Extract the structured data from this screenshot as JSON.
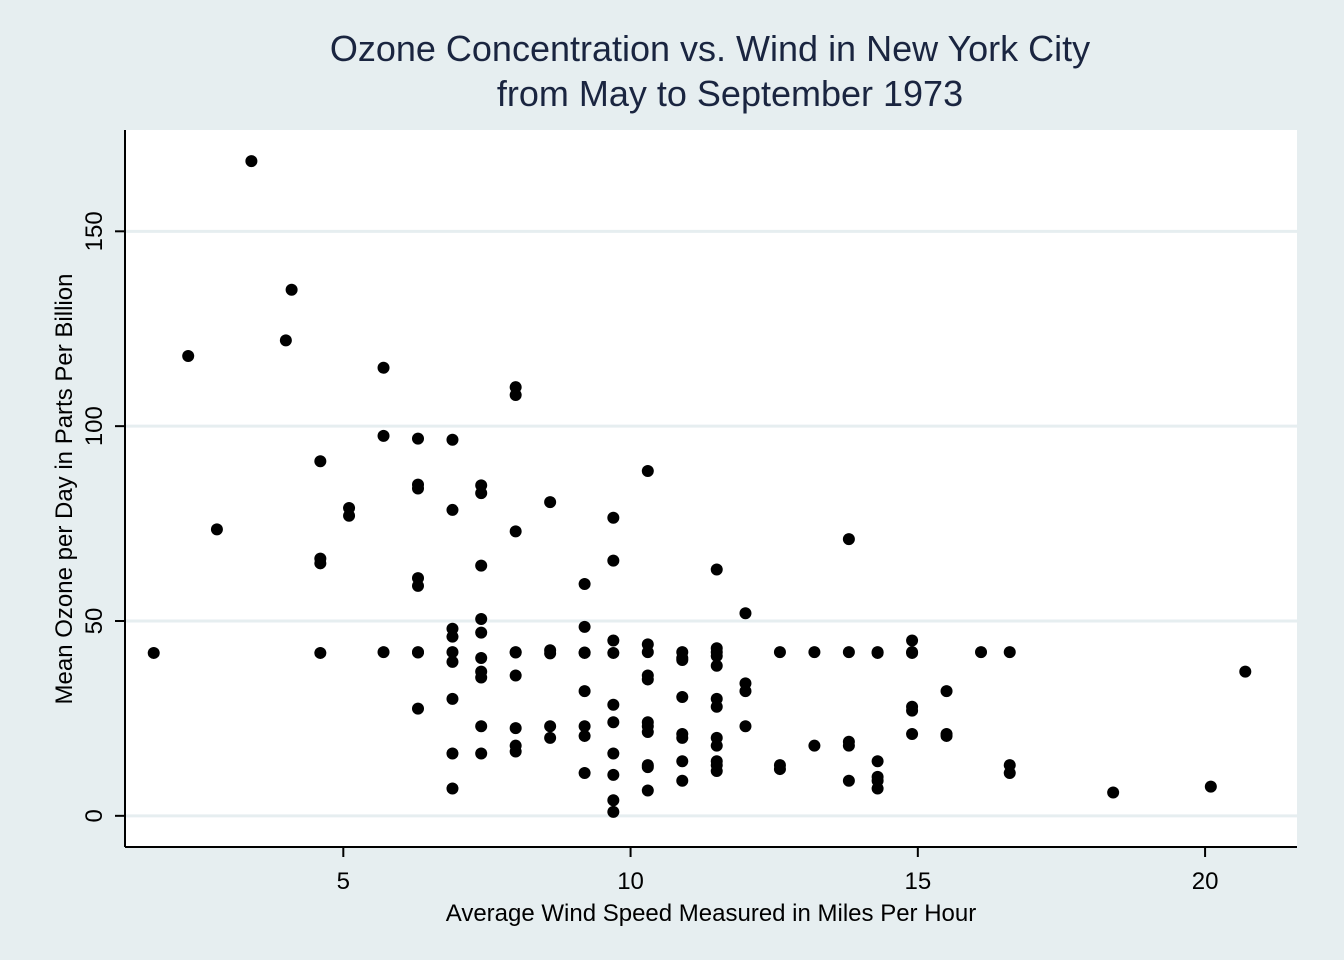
{
  "chart_data": {
    "type": "scatter",
    "title": [
      "Ozone Concentration vs. Wind in New York City",
      "from May to September 1973"
    ],
    "xlabel": "Average Wind Speed Measured in Miles Per Hour",
    "ylabel": "Mean Ozone per Day in Parts Per Billion",
    "xlim": [
      1.2,
      21.6
    ],
    "ylim": [
      -8,
      176
    ],
    "xticks": [
      5,
      10,
      15,
      20
    ],
    "yticks": [
      0,
      50,
      100,
      150
    ],
    "grid": "horizontal",
    "colors": {
      "background": "#e6eef0",
      "plot_area": "#ffffff",
      "gridline": "#e6eef0",
      "marker": "#000000",
      "title": "#1a2540"
    },
    "points": [
      [
        1.7,
        41.8
      ],
      [
        2.3,
        118
      ],
      [
        2.8,
        73.5
      ],
      [
        3.4,
        168
      ],
      [
        4.0,
        122
      ],
      [
        4.1,
        135
      ],
      [
        4.6,
        91
      ],
      [
        4.6,
        66
      ],
      [
        4.6,
        64.8
      ],
      [
        4.6,
        41.8
      ],
      [
        5.1,
        79
      ],
      [
        5.1,
        77
      ],
      [
        5.7,
        115
      ],
      [
        5.7,
        97.5
      ],
      [
        5.7,
        42
      ],
      [
        6.3,
        96.8
      ],
      [
        6.3,
        85
      ],
      [
        6.3,
        84
      ],
      [
        6.3,
        61
      ],
      [
        6.3,
        59
      ],
      [
        6.3,
        42
      ],
      [
        6.3,
        41.9
      ],
      [
        6.3,
        27.5
      ],
      [
        6.9,
        96.5
      ],
      [
        6.9,
        78.5
      ],
      [
        6.9,
        48
      ],
      [
        6.9,
        46
      ],
      [
        6.9,
        42
      ],
      [
        6.9,
        39.5
      ],
      [
        6.9,
        30
      ],
      [
        6.9,
        16
      ],
      [
        6.9,
        7
      ],
      [
        7.4,
        84.8
      ],
      [
        7.4,
        82.8
      ],
      [
        7.4,
        64.2
      ],
      [
        7.4,
        50.5
      ],
      [
        7.4,
        47
      ],
      [
        7.4,
        40.5
      ],
      [
        7.4,
        37
      ],
      [
        7.4,
        35.5
      ],
      [
        7.4,
        23
      ],
      [
        7.4,
        16
      ],
      [
        8.0,
        110
      ],
      [
        8.0,
        108
      ],
      [
        8.0,
        73
      ],
      [
        8.0,
        42
      ],
      [
        8.0,
        41.9
      ],
      [
        8.0,
        36
      ],
      [
        8.0,
        22.5
      ],
      [
        8.0,
        18
      ],
      [
        8.0,
        16.5
      ],
      [
        8.6,
        80.5
      ],
      [
        8.6,
        42.5
      ],
      [
        8.6,
        41.7
      ],
      [
        8.6,
        23
      ],
      [
        8.6,
        20
      ],
      [
        9.2,
        59.5
      ],
      [
        9.2,
        48.5
      ],
      [
        9.2,
        41.9
      ],
      [
        9.2,
        41.8
      ],
      [
        9.2,
        32
      ],
      [
        9.2,
        23
      ],
      [
        9.2,
        20.5
      ],
      [
        9.2,
        11
      ],
      [
        9.7,
        76.5
      ],
      [
        9.7,
        65.5
      ],
      [
        9.7,
        45
      ],
      [
        9.7,
        41.8
      ],
      [
        9.7,
        28.5
      ],
      [
        9.7,
        24
      ],
      [
        9.7,
        16
      ],
      [
        9.7,
        10.5
      ],
      [
        9.7,
        4
      ],
      [
        9.7,
        1
      ],
      [
        10.3,
        88.5
      ],
      [
        10.3,
        44
      ],
      [
        10.3,
        42
      ],
      [
        10.3,
        36
      ],
      [
        10.3,
        35
      ],
      [
        10.3,
        24
      ],
      [
        10.3,
        23
      ],
      [
        10.3,
        21.5
      ],
      [
        10.3,
        13
      ],
      [
        10.3,
        12.5
      ],
      [
        10.3,
        6.5
      ],
      [
        10.9,
        42
      ],
      [
        10.9,
        40.5
      ],
      [
        10.9,
        40
      ],
      [
        10.9,
        30.5
      ],
      [
        10.9,
        21
      ],
      [
        10.9,
        20
      ],
      [
        10.9,
        14
      ],
      [
        10.9,
        9
      ],
      [
        11.5,
        63.2
      ],
      [
        11.5,
        43
      ],
      [
        11.5,
        42
      ],
      [
        11.5,
        41
      ],
      [
        11.5,
        38.5
      ],
      [
        11.5,
        30
      ],
      [
        11.5,
        28
      ],
      [
        11.5,
        20
      ],
      [
        11.5,
        18
      ],
      [
        11.5,
        14
      ],
      [
        11.5,
        13
      ],
      [
        11.5,
        11.5
      ],
      [
        12.0,
        52
      ],
      [
        12.0,
        34
      ],
      [
        12.0,
        32
      ],
      [
        12.0,
        23
      ],
      [
        12.6,
        42
      ],
      [
        12.6,
        13
      ],
      [
        12.6,
        12
      ],
      [
        13.2,
        42
      ],
      [
        13.2,
        18
      ],
      [
        13.8,
        71
      ],
      [
        13.8,
        42
      ],
      [
        13.8,
        19
      ],
      [
        13.8,
        18
      ],
      [
        13.8,
        9
      ],
      [
        14.3,
        42
      ],
      [
        14.3,
        41.8
      ],
      [
        14.3,
        14
      ],
      [
        14.3,
        10
      ],
      [
        14.3,
        9
      ],
      [
        14.3,
        7
      ],
      [
        14.9,
        45
      ],
      [
        14.9,
        42
      ],
      [
        14.9,
        41.8
      ],
      [
        14.9,
        28
      ],
      [
        14.9,
        27
      ],
      [
        14.9,
        21
      ],
      [
        15.5,
        32
      ],
      [
        15.5,
        21
      ],
      [
        15.5,
        20.5
      ],
      [
        16.1,
        42
      ],
      [
        16.6,
        42
      ],
      [
        16.6,
        13
      ],
      [
        16.6,
        11
      ],
      [
        18.4,
        6
      ],
      [
        20.1,
        7.5
      ],
      [
        20.7,
        37
      ]
    ]
  }
}
